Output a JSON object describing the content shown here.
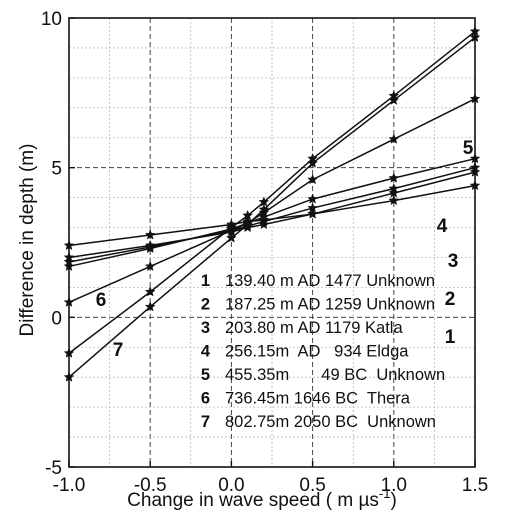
{
  "chart_data": {
    "type": "line",
    "title": "",
    "xlabel": "Change in wave speed ( m µs",
    "xlabel_sup": "-1",
    "xlabel_end": ")",
    "ylabel": "Difference in depth (m)",
    "xlim": [
      -1.0,
      1.5
    ],
    "ylim": [
      -5,
      10
    ],
    "x_ticks": [
      "-1.0",
      "-0.5",
      "0.0",
      "0.5",
      "1.0",
      "1.5"
    ],
    "y_ticks": [
      "-5",
      "0",
      "5",
      "10"
    ],
    "grid": true,
    "x": [
      -1.0,
      -0.5,
      0.0,
      0.1,
      0.2,
      0.5,
      1.0,
      1.5
    ],
    "series": [
      {
        "name": "1",
        "values": [
          2.4,
          2.75,
          3.1,
          3.2,
          3.25,
          3.45,
          3.9,
          4.4
        ]
      },
      {
        "name": "2",
        "values": [
          2.0,
          2.4,
          2.85,
          3.0,
          3.1,
          3.45,
          4.15,
          4.85
        ]
      },
      {
        "name": "3",
        "values": [
          1.85,
          2.35,
          2.9,
          3.05,
          3.2,
          3.65,
          4.3,
          5.0
        ]
      },
      {
        "name": "4",
        "values": [
          1.7,
          2.3,
          2.95,
          3.15,
          3.35,
          3.95,
          4.65,
          5.3
        ]
      },
      {
        "name": "5",
        "values": [
          0.5,
          1.7,
          2.9,
          3.15,
          3.5,
          4.6,
          5.95,
          7.3
        ]
      },
      {
        "name": "6",
        "values": [
          -1.2,
          0.85,
          3.0,
          3.4,
          3.85,
          5.3,
          7.4,
          9.55
        ]
      },
      {
        "name": "7",
        "values": [
          -2.0,
          0.35,
          2.65,
          3.1,
          3.6,
          5.15,
          7.25,
          9.35
        ]
      }
    ],
    "series_labels": [
      "1",
      "2",
      "3",
      "4",
      "5",
      "6",
      "7"
    ],
    "legend": {
      "placement": "bottom-right",
      "entries": [
        {
          "num": "1",
          "text": "139.40 m AD 1477 Unknown"
        },
        {
          "num": "2",
          "text": "187.25 m AD 1259 Unknown"
        },
        {
          "num": "3",
          "text": "203.80 m AD 1179 Katla"
        },
        {
          "num": "4",
          "text": "256.15m  AD   934 Eldga"
        },
        {
          "num": "5",
          "text": "455.35m       49 BC  Unknown"
        },
        {
          "num": "6",
          "text": "736.45m 1646 BC  Thera"
        },
        {
          "num": "7",
          "text": "802.75m 2050 BC  Unknown"
        }
      ]
    }
  }
}
